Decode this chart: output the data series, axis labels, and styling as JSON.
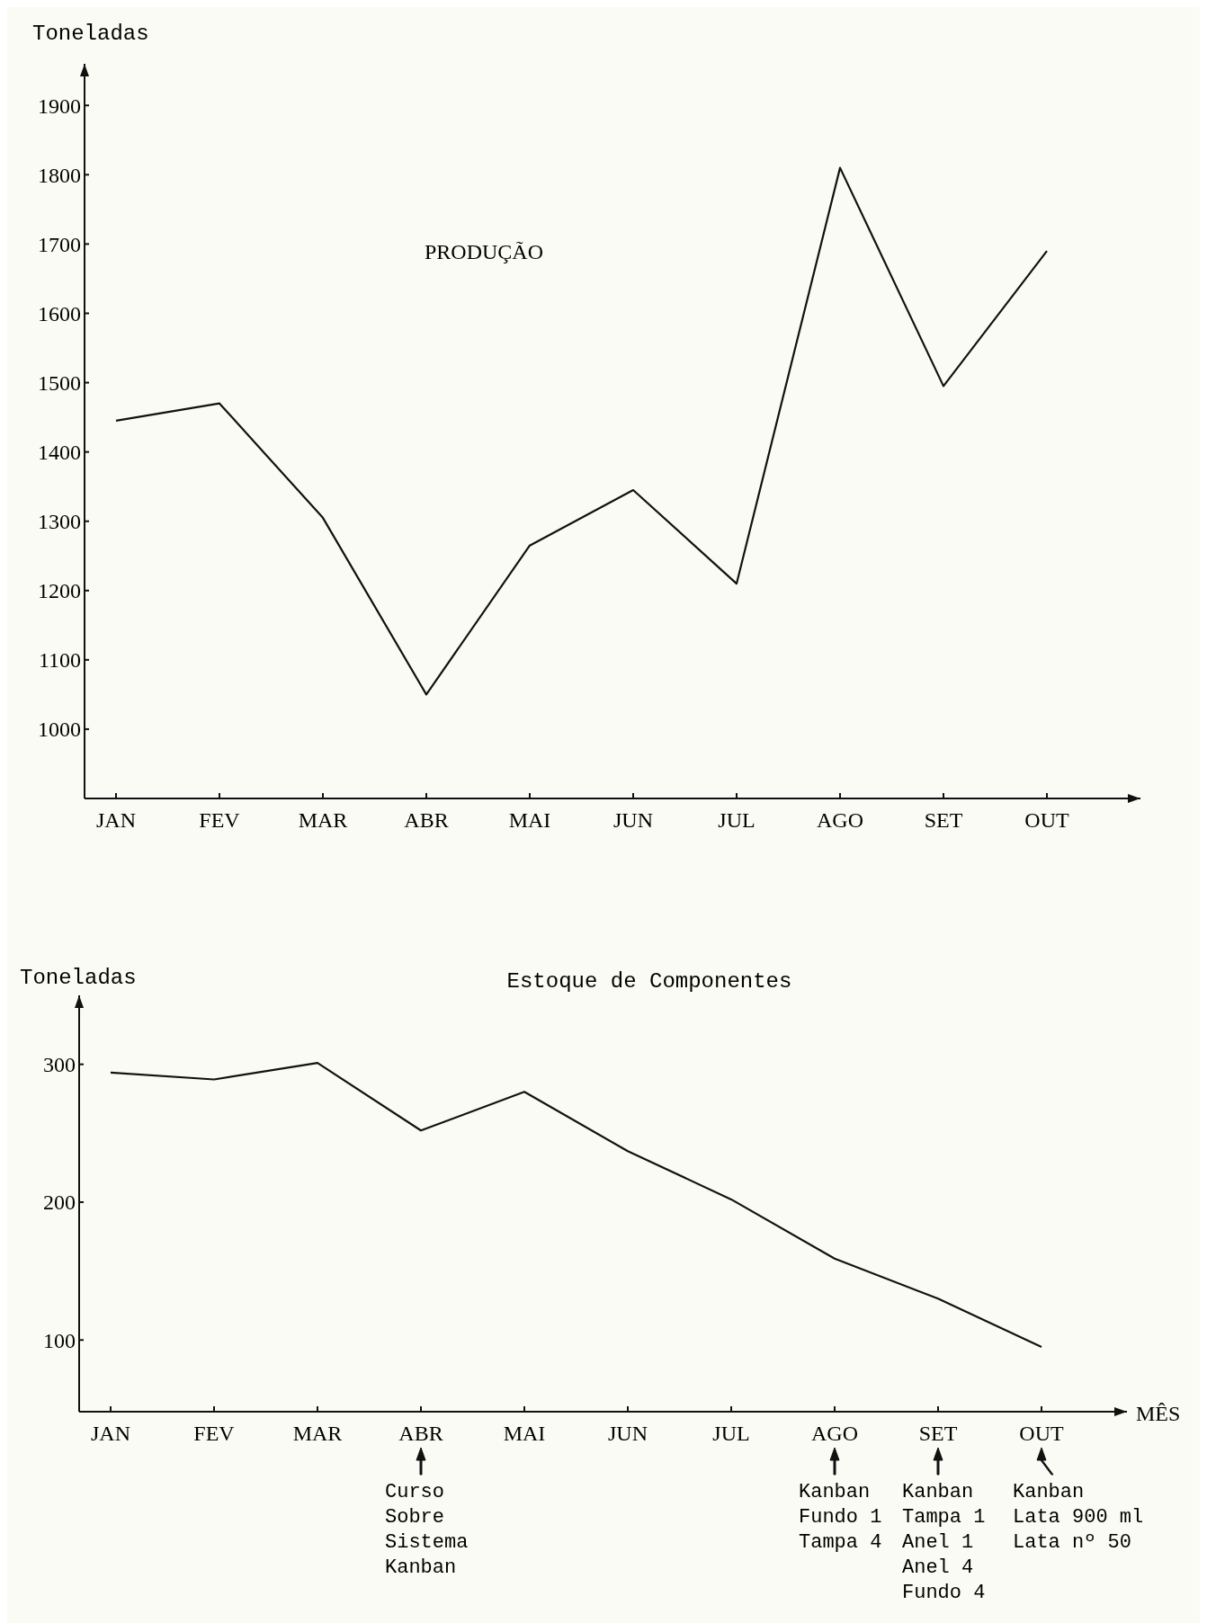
{
  "chart_data": [
    {
      "type": "line",
      "title": "PRODUÇÃO",
      "ylabel": "Toneladas",
      "categories": [
        "JAN",
        "FEV",
        "MAR",
        "ABR",
        "MAI",
        "JUN",
        "JUL",
        "AGO",
        "SET",
        "OUT"
      ],
      "series": [
        {
          "color": "#111111",
          "values": [
            1445,
            1470,
            1305,
            1050,
            1265,
            1345,
            1210,
            1810,
            1495,
            1690
          ]
        }
      ],
      "ylim": [
        900,
        1960
      ],
      "yticks": [
        1000,
        1100,
        1200,
        1300,
        1400,
        1500,
        1600,
        1700,
        1800,
        1900
      ],
      "grid": false,
      "marker": "none",
      "line_style": "solid"
    },
    {
      "type": "line",
      "title": "Estoque de Componentes",
      "ylabel": "Toneladas",
      "xlabel": "MÊS",
      "categories": [
        "JAN",
        "FEV",
        "MAR",
        "ABR",
        "MAI",
        "JUN",
        "JUL",
        "AGO",
        "SET",
        "OUT"
      ],
      "series": [
        {
          "color": "#111111",
          "values": [
            294,
            289,
            301,
            252,
            280,
            237,
            202,
            159,
            130,
            95
          ]
        }
      ],
      "ylim": [
        48,
        350
      ],
      "yticks": [
        100,
        200,
        300
      ],
      "grid": false,
      "marker": "none",
      "line_style": "solid",
      "annotations": [
        "Curso\nSobre\nSistema\nKanban",
        "Kanban\nFundo 1\nTampa 4",
        "Kanban\nTampa 1\nAnel 1\nAnel 4\nFundo 4",
        "Kanban\nLata 900 ml\nLata nº 50"
      ]
    }
  ]
}
